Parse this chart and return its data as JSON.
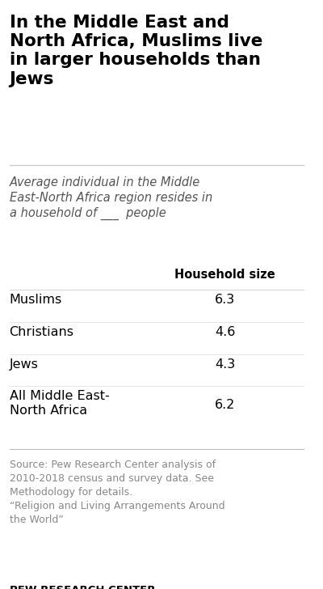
{
  "title": "In the Middle East and\nNorth Africa, Muslims live\nin larger households than\nJews",
  "subtitle": "Average individual in the Middle\nEast-North Africa region resides in\na household of ___  people",
  "column_header": "Household size",
  "rows": [
    {
      "label": "Muslims",
      "value": "6.3"
    },
    {
      "label": "Christians",
      "value": "4.6"
    },
    {
      "label": "Jews",
      "value": "4.3"
    },
    {
      "label": "All Middle East-\nNorth Africa",
      "value": "6.2"
    }
  ],
  "source_text": "Source: Pew Research Center analysis of\n2010-2018 census and survey data. See\nMethodology for details.\n“Religion and Living Arrangements Around\nthe World”",
  "footer": "PEW RESEARCH CENTER",
  "bg_color": "#ffffff",
  "title_color": "#000000",
  "subtitle_color": "#555555",
  "row_label_color": "#000000",
  "value_color": "#000000",
  "source_color": "#888888",
  "footer_color": "#000000",
  "header_color": "#000000",
  "line_color": "#cccccc"
}
